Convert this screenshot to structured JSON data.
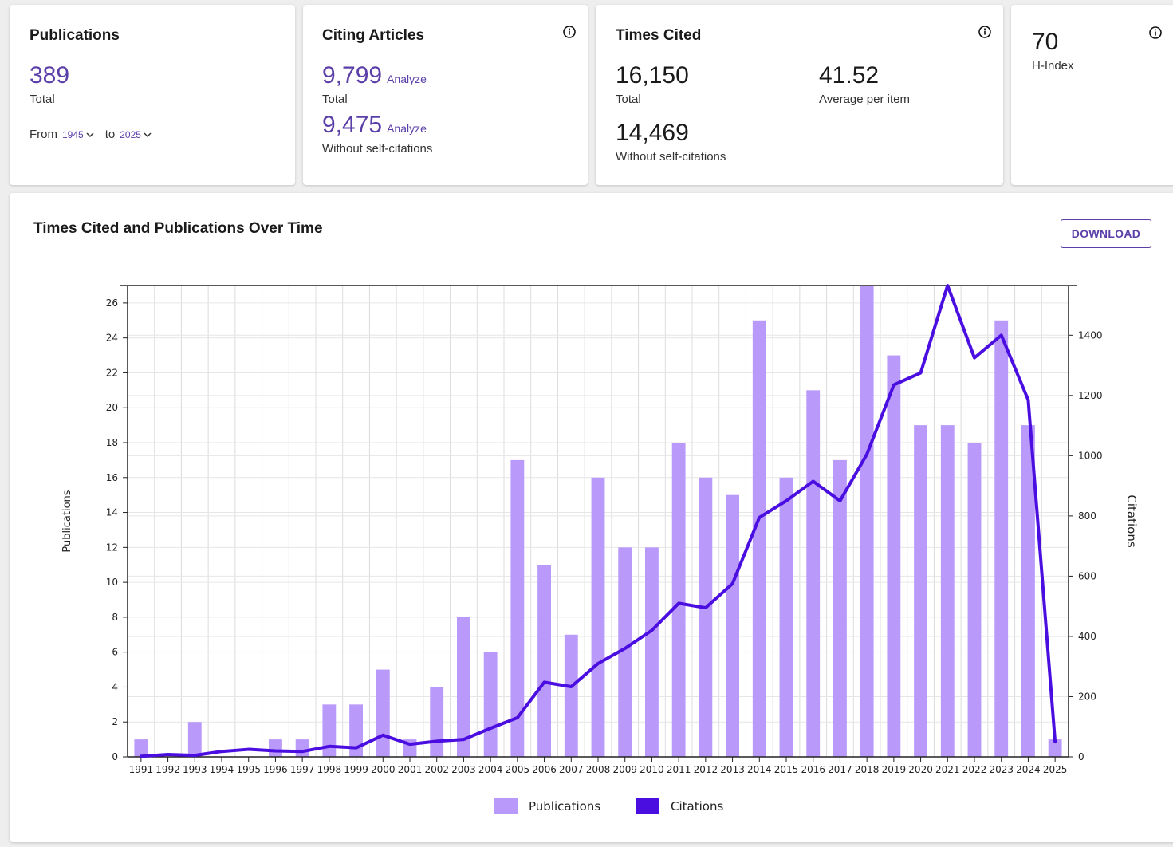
{
  "cards": {
    "publications": {
      "title": "Publications",
      "total": "389",
      "total_label": "Total",
      "from_label": "From",
      "from_value": "1945",
      "to_label": "to",
      "to_value": "2025"
    },
    "citing": {
      "title": "Citing Articles",
      "total": "9,799",
      "total_label": "Total",
      "without_self": "9,475",
      "without_self_label": "Without self-citations",
      "analyze_label": "Analyze"
    },
    "times_cited": {
      "title": "Times Cited",
      "total": "16,150",
      "total_label": "Total",
      "average": "41.52",
      "average_label": "Average per item",
      "without_self": "14,469",
      "without_self_label": "Without self-citations"
    },
    "hindex": {
      "value": "70",
      "label": "H-Index"
    }
  },
  "chart_section": {
    "title": "Times Cited and Publications Over Time",
    "download_label": "DOWNLOAD"
  },
  "chart_data": {
    "type": "bar",
    "categories": [
      "1991",
      "1992",
      "1993",
      "1994",
      "1995",
      "1996",
      "1997",
      "1998",
      "1999",
      "2000",
      "2001",
      "2002",
      "2003",
      "2004",
      "2005",
      "2006",
      "2007",
      "2008",
      "2009",
      "2010",
      "2011",
      "2012",
      "2013",
      "2014",
      "2015",
      "2016",
      "2017",
      "2018",
      "2019",
      "2020",
      "2021",
      "2022",
      "2023",
      "2024",
      "2025"
    ],
    "series": [
      {
        "name": "Publications",
        "type": "bar",
        "axis": "left",
        "color": "#b99afa",
        "values": [
          1,
          0,
          2,
          0,
          0,
          1,
          1,
          3,
          3,
          5,
          1,
          4,
          8,
          6,
          17,
          11,
          7,
          16,
          12,
          12,
          18,
          16,
          15,
          25,
          16,
          21,
          17,
          27,
          23,
          19,
          19,
          18,
          25,
          19,
          1
        ]
      },
      {
        "name": "Citations",
        "type": "line",
        "axis": "right",
        "color": "#4a0ee0",
        "values": [
          2,
          8,
          5,
          18,
          25,
          20,
          18,
          35,
          30,
          72,
          42,
          52,
          58,
          95,
          130,
          248,
          233,
          310,
          360,
          420,
          510,
          495,
          575,
          795,
          850,
          915,
          850,
          1005,
          1235,
          1275,
          1565,
          1325,
          1400,
          1185,
          50
        ]
      }
    ],
    "ylabel": "Publications",
    "y2label": "Citations",
    "ylim": [
      0,
      27
    ],
    "y2lim": [
      0,
      1565
    ],
    "yticks": [
      0,
      2,
      4,
      6,
      8,
      10,
      12,
      14,
      16,
      18,
      20,
      22,
      24,
      26
    ],
    "y2ticks": [
      0,
      200,
      400,
      600,
      800,
      1000,
      1200,
      1400
    ],
    "grid": true,
    "legend_position": "bottom"
  }
}
